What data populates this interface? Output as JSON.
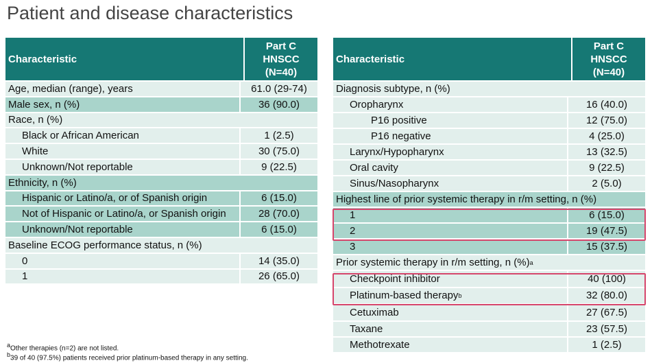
{
  "title": "Patient and disease characteristics",
  "colors": {
    "header": "#167874",
    "row_light": "#e2efec",
    "row_dark": "#a9d4cb",
    "highlight": "#d6456b"
  },
  "left_table": {
    "header": {
      "col1": "Characteristic",
      "col2": [
        "Part C",
        "HNSCC",
        "(N=40)"
      ]
    },
    "rows": [
      {
        "label": "Age, median (range), years",
        "value": "61.0 (29-74)"
      },
      {
        "label": "Male sex, n (%)",
        "value": "36 (90.0)"
      },
      {
        "label": "Race, n (%)",
        "value": ""
      },
      {
        "label": "Black or African American",
        "value": "1 (2.5)"
      },
      {
        "label": "White",
        "value": "30 (75.0)"
      },
      {
        "label": "Unknown/Not reportable",
        "value": "9 (22.5)"
      },
      {
        "label": "Ethnicity, n (%)",
        "value": ""
      },
      {
        "label": "Hispanic or Latino/a, or of Spanish origin",
        "value": "6 (15.0)"
      },
      {
        "label": "Not of Hispanic or Latino/a, or Spanish origin",
        "value": "28 (70.0)"
      },
      {
        "label": "Unknown/Not reportable",
        "value": "6 (15.0)"
      },
      {
        "label": "Baseline ECOG performance status, n (%)",
        "value": ""
      },
      {
        "label": "0",
        "value": "14 (35.0)"
      },
      {
        "label": "1",
        "value": "26 (65.0)"
      }
    ]
  },
  "right_table": {
    "header": {
      "col1": "Characteristic",
      "col2": [
        "Part C",
        "HNSCC",
        "(N=40)"
      ]
    },
    "rows": [
      {
        "label": "Diagnosis subtype, n (%)",
        "value": ""
      },
      {
        "label": "Oropharynx",
        "value": "16 (40.0)"
      },
      {
        "label": "P16 positive",
        "value": "12 (75.0)"
      },
      {
        "label": "P16 negative",
        "value": "4 (25.0)"
      },
      {
        "label": "Larynx/Hypopharynx",
        "value": "13 (32.5)"
      },
      {
        "label": "Oral cavity",
        "value": "9 (22.5)"
      },
      {
        "label": "Sinus/Nasopharynx",
        "value": "2 (5.0)"
      },
      {
        "label": "Highest line of prior systemic therapy in r/m setting, n (%)",
        "value": ""
      },
      {
        "label": "1",
        "value": "6 (15.0)"
      },
      {
        "label": "2",
        "value": "19 (47.5)"
      },
      {
        "label": "3",
        "value": "15 (37.5)"
      },
      {
        "label": "Prior systemic therapy in r/m setting, n (%)",
        "sup": "a",
        "value": ""
      },
      {
        "label": "Checkpoint inhibitor",
        "value": "40 (100)"
      },
      {
        "label": "Platinum-based therapy",
        "sup": "b",
        "value": "32 (80.0)"
      },
      {
        "label": "Cetuximab",
        "value": "27 (67.5)"
      },
      {
        "label": "Taxane",
        "value": "23 (57.5)"
      },
      {
        "label": "Methotrexate",
        "value": "1 (2.5)"
      }
    ]
  },
  "footnotes": [
    {
      "sup": "a",
      "text": "Other therapies (n=2) are not listed."
    },
    {
      "sup": "b",
      "text": "39 of 40 (97.5%) patients received prior platinum-based  therapy in any setting."
    }
  ]
}
